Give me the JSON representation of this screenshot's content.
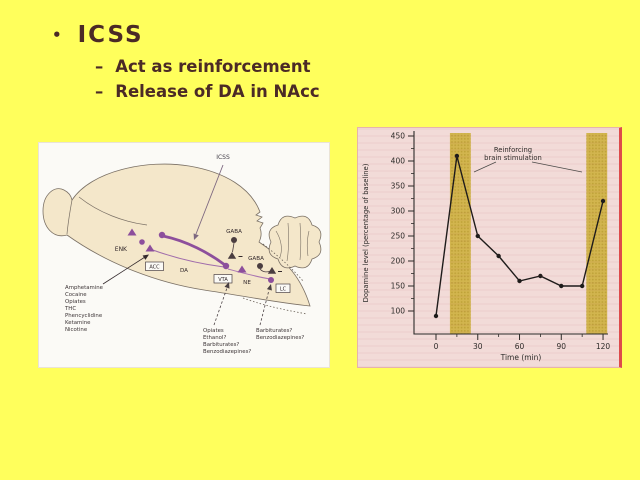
{
  "slide": {
    "background_color": "#ffff5c",
    "text_color": "#4b2a26",
    "bullet_glyph": "•",
    "title": "ICSS",
    "sub_bullets": [
      {
        "dash": "–",
        "label": "Act as reinforcement"
      },
      {
        "dash": "–",
        "label": "Release of DA in NAcc"
      }
    ]
  },
  "diagram": {
    "icss_label": "ICSS",
    "region_boxes": {
      "acc": "ACC",
      "vta": "VTA",
      "lc": "LC"
    },
    "neurotransmitters": {
      "enk": "ENK",
      "gaba_vta": "GABA",
      "gaba_lc": "GABA",
      "da": "DA",
      "ne": "NE"
    },
    "drug_list": [
      "Amphetamine",
      "Cocaine",
      "Opiates",
      "THC",
      "Phencyclidine",
      "Ketamine",
      "Nicotine"
    ],
    "vta_drugs": [
      "Opiates",
      "Ethanol?",
      "Barbiturates?",
      "Benzodiazepines?"
    ],
    "lc_drugs": [
      "Barbiturates?",
      "Benzodiazepines?"
    ],
    "colors": {
      "brain_fill": "#f4e7ca",
      "pathway_purple": "#8d4f9c",
      "inhibitory_dark": "#4a3d40"
    }
  },
  "chart_data": {
    "type": "line",
    "title": "",
    "x": [
      0,
      15,
      30,
      45,
      60,
      75,
      90,
      105,
      120
    ],
    "values": [
      90,
      410,
      250,
      210,
      160,
      170,
      150,
      150,
      320
    ],
    "xlabel": "Time (min)",
    "ylabel": "Dopamine level (percentage of baseline)",
    "xticks": [
      0,
      30,
      60,
      90,
      120
    ],
    "yticks": [
      100,
      150,
      200,
      250,
      300,
      350,
      400,
      450
    ],
    "xlim": [
      -15,
      135
    ],
    "ylim": [
      54,
      460
    ],
    "grid": false,
    "legend": "none",
    "annotation_lines": [
      "Reinforcing",
      "brain stimulation"
    ],
    "stim_bands": [
      [
        10,
        25
      ],
      [
        108,
        123
      ]
    ],
    "band_color": "#d2b54e",
    "band_dot_color": "#bfa238",
    "line_color": "#1d1b1a",
    "axis_color": "#2b2a28",
    "background": "#f2dbd8"
  }
}
